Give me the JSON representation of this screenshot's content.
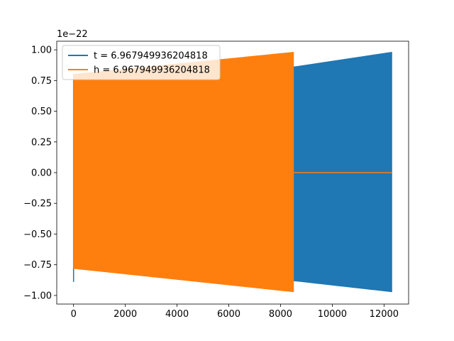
{
  "chart_data": {
    "type": "line",
    "title": "",
    "xlabel": "",
    "ylabel": "",
    "y_offset_label": "1e−22",
    "xlim": [
      -650,
      12950
    ],
    "ylim": [
      -1.07,
      1.07
    ],
    "x_ticks": [
      0,
      2000,
      4000,
      6000,
      8000,
      10000,
      12000
    ],
    "x_tick_labels": [
      "0",
      "2000",
      "4000",
      "6000",
      "8000",
      "10000",
      "12000"
    ],
    "y_ticks": [
      1.0,
      0.75,
      0.5,
      0.25,
      0.0,
      -0.25,
      -0.5,
      -0.75,
      -1.0
    ],
    "y_tick_labels": [
      "1.00",
      "0.75",
      "0.50",
      "0.25",
      "0.00",
      "−0.25",
      "−0.50",
      "−0.75",
      "−1.00"
    ],
    "grid": false,
    "legend_position": "upper-left",
    "series": [
      {
        "name": "t = 6.967949936204818",
        "color": "#1f77b4",
        "x_extent": [
          0,
          12300
        ],
        "upper_envelope": {
          "x": [
            0,
            8500,
            12300
          ],
          "y": [
            0.8,
            0.86,
            0.98
          ]
        },
        "lower_envelope": {
          "x": [
            0,
            8500,
            12300
          ],
          "y": [
            -0.78,
            -0.88,
            -0.97
          ]
        },
        "initial_spike": {
          "x": 0,
          "min": -0.89,
          "max": 0.8
        }
      },
      {
        "name": "h = 6.967949936204818",
        "color": "#ff7f0e",
        "x_extent": [
          0,
          8500
        ],
        "upper_envelope": {
          "x": [
            0,
            8500
          ],
          "y": [
            0.8,
            0.98
          ]
        },
        "lower_envelope": {
          "x": [
            0,
            8500
          ],
          "y": [
            -0.78,
            -0.97
          ]
        },
        "trailing_zero": {
          "x": [
            8500,
            12300
          ],
          "y": 0.0
        }
      }
    ]
  }
}
